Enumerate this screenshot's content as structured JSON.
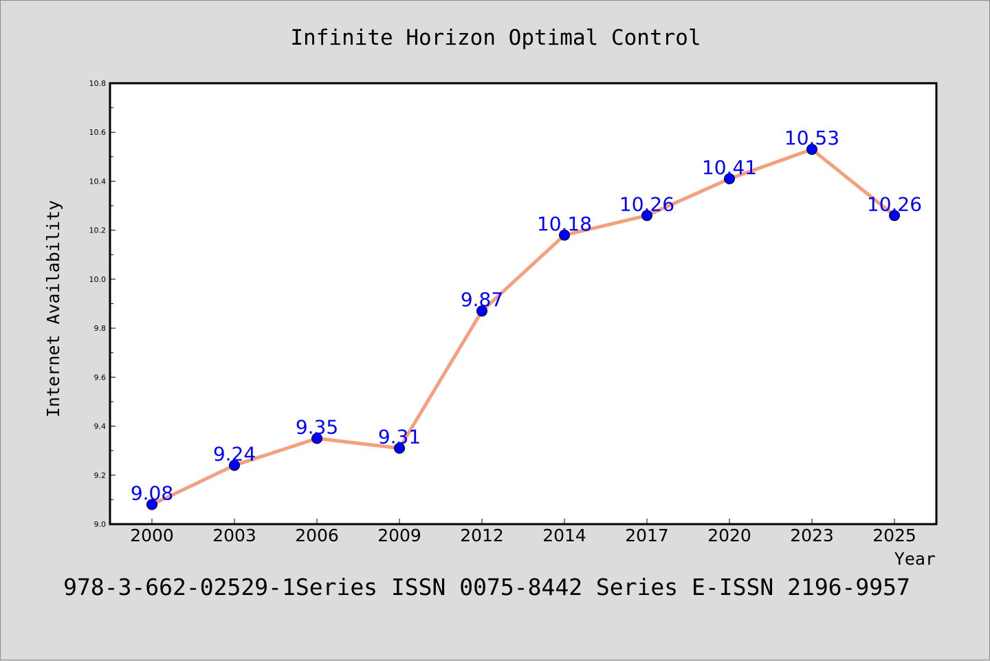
{
  "chart_data": {
    "type": "line",
    "title": "Infinite Horizon Optimal Control",
    "xlabel": "Year",
    "ylabel": "Internet Availability",
    "categories": [
      "2000",
      "2003",
      "2006",
      "2009",
      "2012",
      "2014",
      "2017",
      "2020",
      "2023",
      "2025"
    ],
    "series": [
      {
        "values": [
          9.08,
          9.24,
          9.35,
          9.31,
          9.87,
          10.18,
          10.26,
          10.41,
          10.53,
          10.26
        ],
        "labels": [
          "9.08",
          "9.24",
          "9.35",
          "9.31",
          "9.87",
          "10.18",
          "10.26",
          "10.41",
          "10.53",
          "10.26"
        ],
        "line_color": "#f4a07e",
        "marker_color": "#0000ff"
      }
    ],
    "ylim": [
      9.0,
      10.8
    ],
    "yticks": [
      "9.0",
      "9.2",
      "9.4",
      "9.6",
      "9.8",
      "10.0",
      "10.2",
      "10.4",
      "10.6",
      "10.8"
    ],
    "grid": false,
    "legend": false
  },
  "footer_text": "978-3-662-02529-1Series ISSN 0075-8442 Series E-ISSN 2196-9957",
  "colors": {
    "background": "#dcdcdc",
    "plot_background": "#ffffff",
    "line": "#f4a07e",
    "marker": "#0000ff",
    "data_label": "#0000ff"
  }
}
